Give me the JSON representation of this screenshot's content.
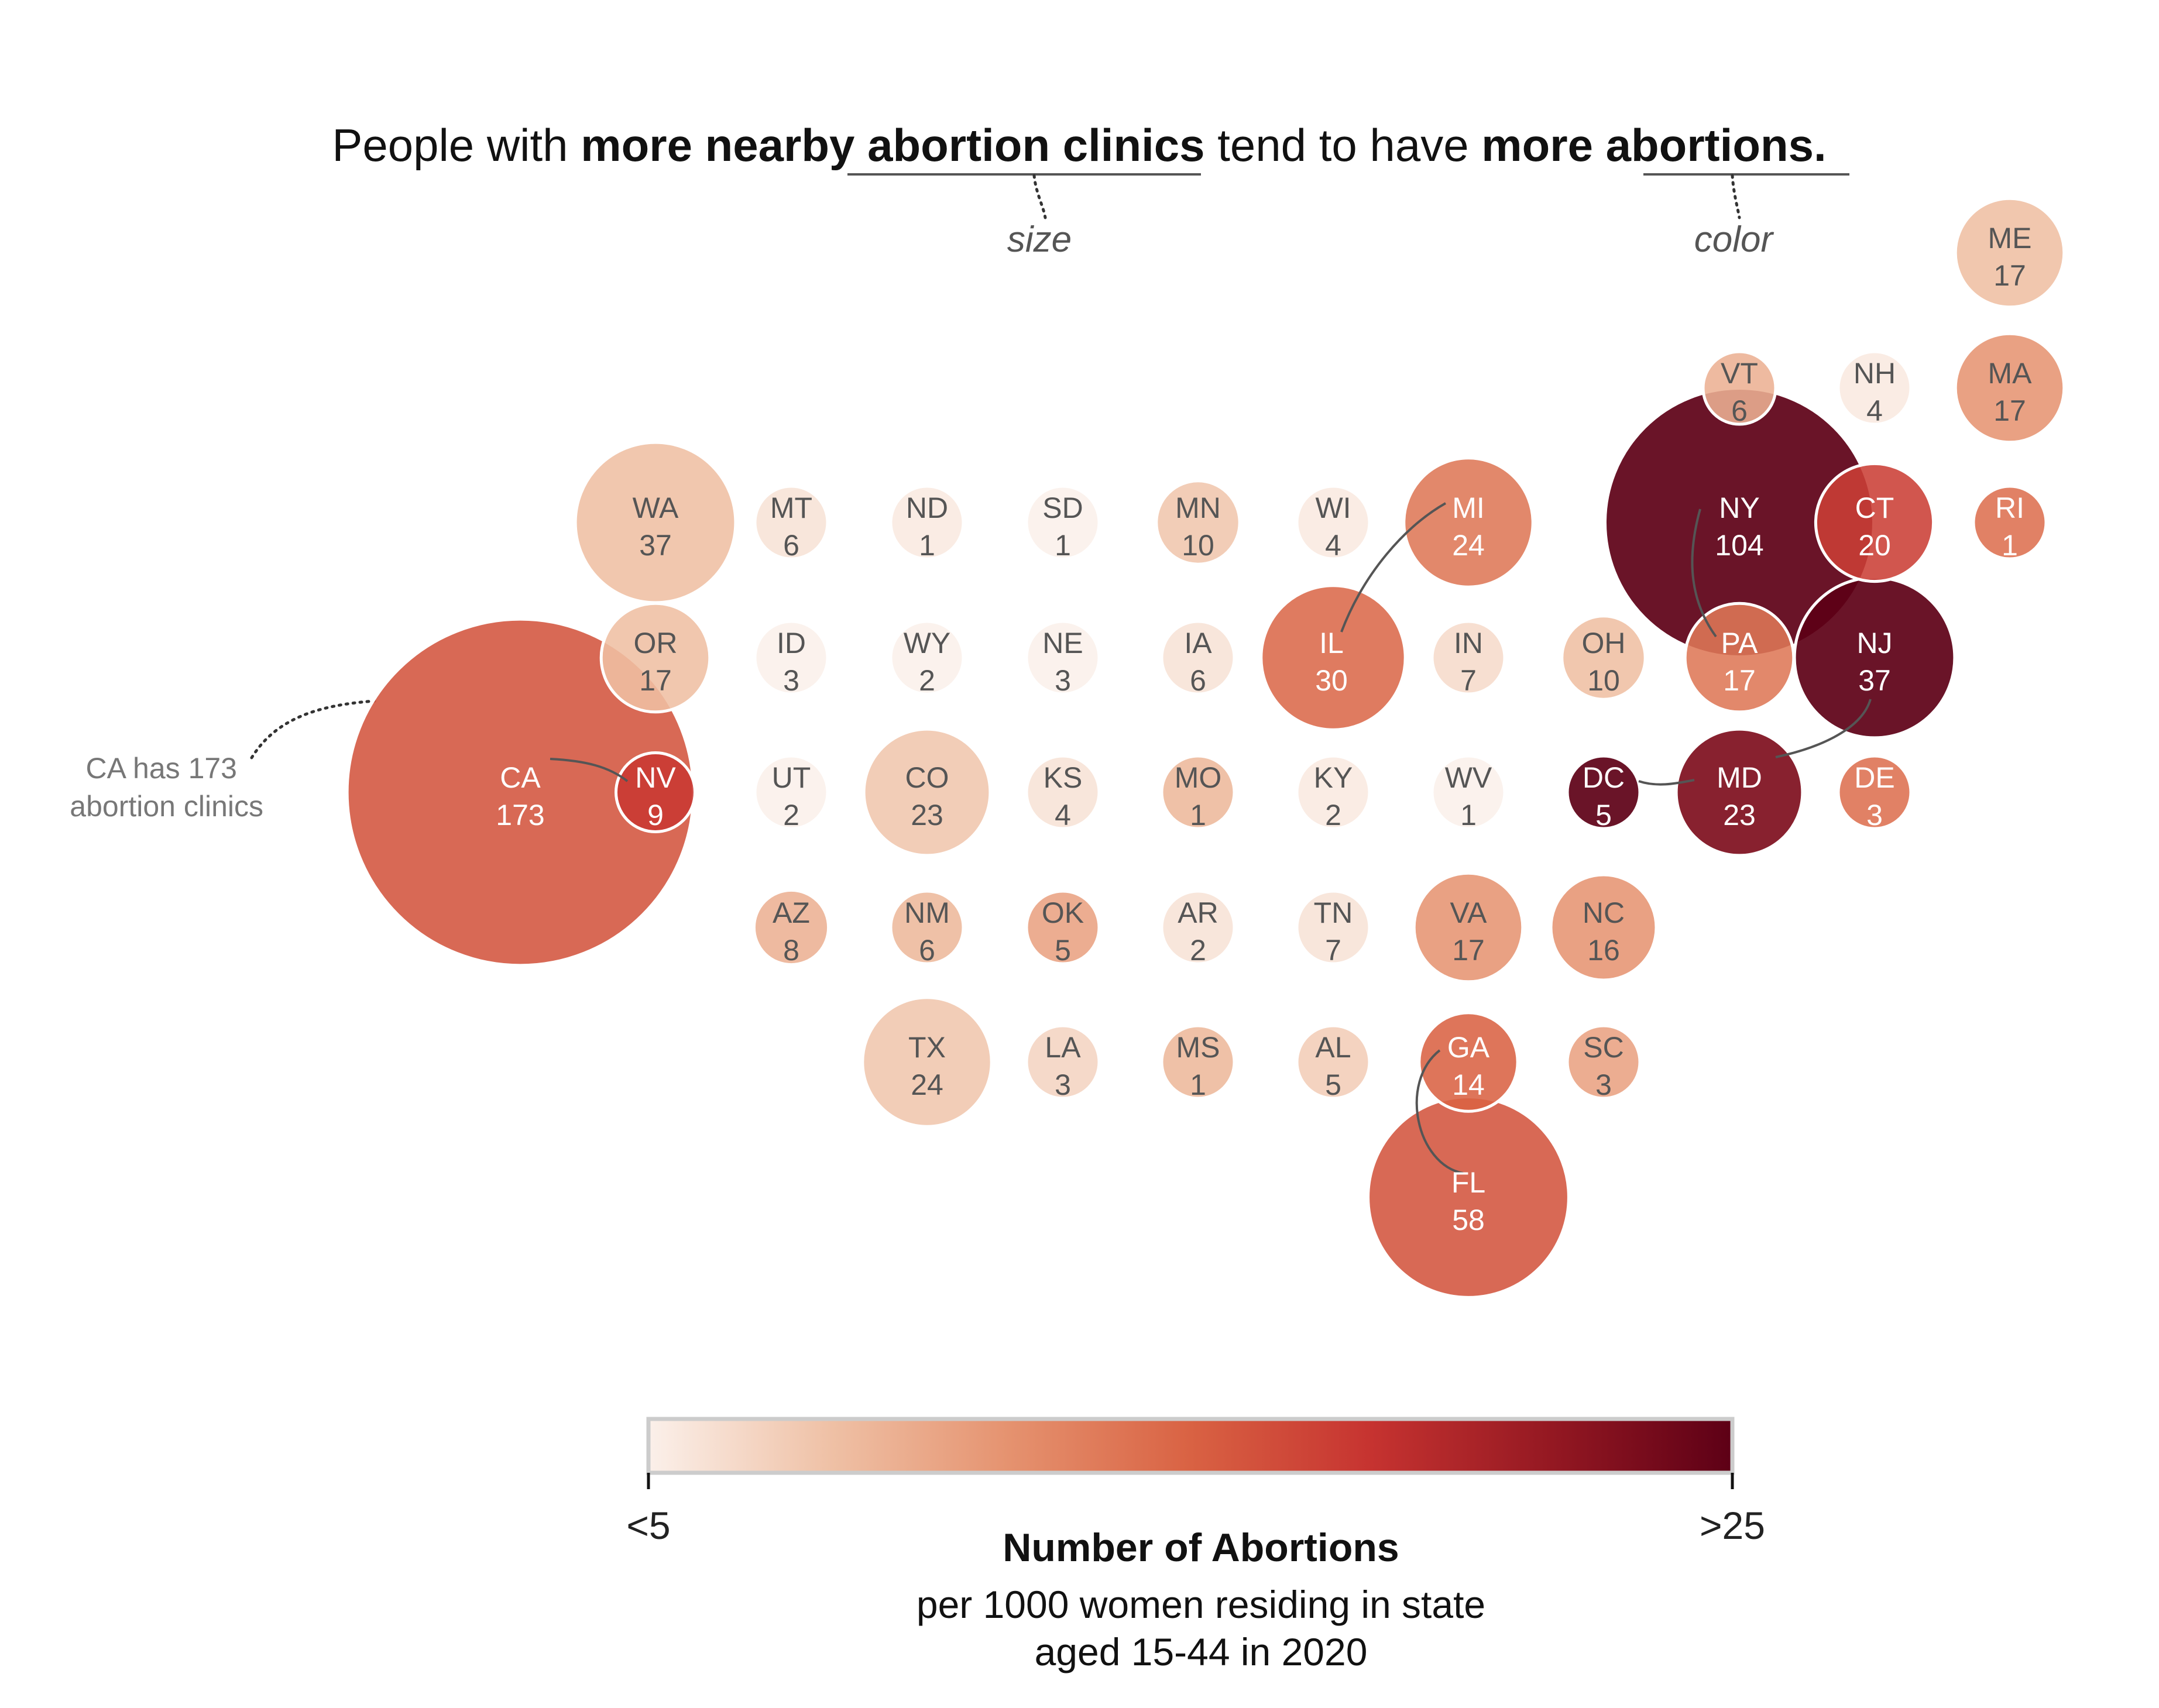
{
  "chart_data": {
    "type": "bubble-tile-map",
    "title_parts": [
      {
        "text": "People with ",
        "bold": false
      },
      {
        "text": "more nearby ",
        "bold": true
      },
      {
        "text": "abortion clinics",
        "bold": true
      },
      {
        "text": " tend to have ",
        "bold": false
      },
      {
        "text": "more ",
        "bold": true
      },
      {
        "text": "abortions.",
        "bold": true
      }
    ],
    "encoding_notes": {
      "size": "size",
      "color": "color"
    },
    "annotation": [
      "CA has 173",
      "abortion clinics"
    ],
    "legend": {
      "min_label": "<5",
      "max_label": ">25",
      "title": "Number of Abortions",
      "subtitle_lines": [
        "per 1000 women residing in state",
        "aged 15-44 in 2020"
      ],
      "color_stops": [
        "#fbf0ea",
        "#efc1a6",
        "#e5926f",
        "#d96243",
        "#c63330",
        "#941822",
        "#5d0016"
      ]
    },
    "states": [
      {
        "abbr": "ME",
        "clinics": 17,
        "rate": 8.5
      },
      {
        "abbr": "VT",
        "clinics": 6,
        "rate": 9.5
      },
      {
        "abbr": "NH",
        "clinics": 4,
        "rate": 5.5
      },
      {
        "abbr": "MA",
        "clinics": 17,
        "rate": 11.5
      },
      {
        "abbr": "WA",
        "clinics": 37,
        "rate": 8.5
      },
      {
        "abbr": "MT",
        "clinics": 6,
        "rate": 6
      },
      {
        "abbr": "ND",
        "clinics": 1,
        "rate": 5.5
      },
      {
        "abbr": "SD",
        "clinics": 1,
        "rate": 2.5
      },
      {
        "abbr": "MN",
        "clinics": 10,
        "rate": 8
      },
      {
        "abbr": "WI",
        "clinics": 4,
        "rate": 5.5
      },
      {
        "abbr": "MI",
        "clinics": 24,
        "rate": 13.5
      },
      {
        "abbr": "NY",
        "clinics": 104,
        "rate": 26
      },
      {
        "abbr": "CT",
        "clinics": 20,
        "rate": 17.5
      },
      {
        "abbr": "RI",
        "clinics": 1,
        "rate": 14
      },
      {
        "abbr": "OR",
        "clinics": 17,
        "rate": 8.5
      },
      {
        "abbr": "ID",
        "clinics": 3,
        "rate": 4
      },
      {
        "abbr": "WY",
        "clinics": 2,
        "rate": 3
      },
      {
        "abbr": "NE",
        "clinics": 3,
        "rate": 5
      },
      {
        "abbr": "IA",
        "clinics": 6,
        "rate": 6
      },
      {
        "abbr": "IL",
        "clinics": 30,
        "rate": 14.5
      },
      {
        "abbr": "IN",
        "clinics": 7,
        "rate": 6.5
      },
      {
        "abbr": "OH",
        "clinics": 10,
        "rate": 8.5
      },
      {
        "abbr": "PA",
        "clinics": 17,
        "rate": 13.5
      },
      {
        "abbr": "NJ",
        "clinics": 37,
        "rate": 27
      },
      {
        "abbr": "CA",
        "clinics": 173,
        "rate": 16
      },
      {
        "abbr": "NV",
        "clinics": 9,
        "rate": 18
      },
      {
        "abbr": "UT",
        "clinics": 2,
        "rate": 4
      },
      {
        "abbr": "CO",
        "clinics": 23,
        "rate": 8
      },
      {
        "abbr": "KS",
        "clinics": 4,
        "rate": 6
      },
      {
        "abbr": "MO",
        "clinics": 1,
        "rate": 9
      },
      {
        "abbr": "KY",
        "clinics": 2,
        "rate": 5.5
      },
      {
        "abbr": "WV",
        "clinics": 1,
        "rate": 4.5
      },
      {
        "abbr": "DC",
        "clinics": 5,
        "rate": 26
      },
      {
        "abbr": "MD",
        "clinics": 23,
        "rate": 23
      },
      {
        "abbr": "DE",
        "clinics": 3,
        "rate": 14
      },
      {
        "abbr": "AZ",
        "clinics": 8,
        "rate": 9.5
      },
      {
        "abbr": "NM",
        "clinics": 6,
        "rate": 9
      },
      {
        "abbr": "OK",
        "clinics": 5,
        "rate": 10.5
      },
      {
        "abbr": "AR",
        "clinics": 2,
        "rate": 6
      },
      {
        "abbr": "TN",
        "clinics": 7,
        "rate": 6
      },
      {
        "abbr": "VA",
        "clinics": 17,
        "rate": 11.5
      },
      {
        "abbr": "NC",
        "clinics": 16,
        "rate": 11.5
      },
      {
        "abbr": "TX",
        "clinics": 24,
        "rate": 8
      },
      {
        "abbr": "LA",
        "clinics": 3,
        "rate": 7
      },
      {
        "abbr": "MS",
        "clinics": 1,
        "rate": 9
      },
      {
        "abbr": "AL",
        "clinics": 5,
        "rate": 7.5
      },
      {
        "abbr": "GA",
        "clinics": 14,
        "rate": 15
      },
      {
        "abbr": "SC",
        "clinics": 3,
        "rate": 10.5
      },
      {
        "abbr": "FL",
        "clinics": 58,
        "rate": 16
      }
    ]
  }
}
